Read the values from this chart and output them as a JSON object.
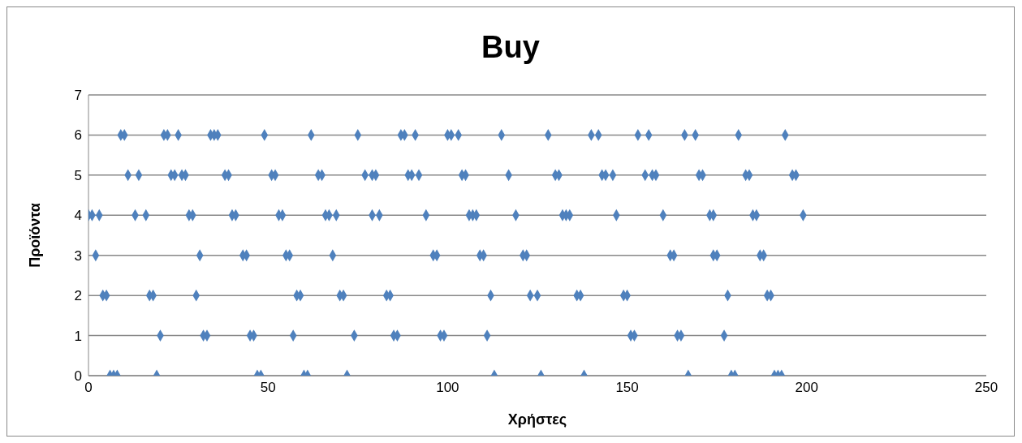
{
  "chart_data": {
    "type": "scatter",
    "title": "Buy",
    "xlabel": "Χρήστες",
    "ylabel": "Προϊόντα",
    "xlim": [
      0,
      250
    ],
    "xticks": [
      0,
      50,
      100,
      150,
      200,
      250
    ],
    "ylim": [
      0,
      7
    ],
    "yticks": [
      0,
      1,
      2,
      3,
      4,
      5,
      6,
      7
    ],
    "grid": "y",
    "marker": "diamond",
    "series": [
      {
        "color": "#4f81bd",
        "x": [
          9,
          10,
          21,
          22,
          25,
          34,
          35,
          36,
          49,
          62,
          75,
          87,
          88,
          91,
          100,
          101,
          103,
          115,
          128,
          140,
          142,
          153,
          156,
          166,
          169,
          181,
          194
        ],
        "values": [
          6,
          6,
          6,
          6,
          6,
          6,
          6,
          6,
          6,
          6,
          6,
          6,
          6,
          6,
          6,
          6,
          6,
          6,
          6,
          6,
          6,
          6,
          6,
          6,
          6,
          6,
          6
        ]
      },
      {
        "color": "#4f81bd",
        "x": [
          11,
          14,
          23,
          24,
          26,
          27,
          38,
          39,
          51,
          52,
          64,
          65,
          77,
          79,
          80,
          89,
          90,
          92,
          104,
          105,
          117,
          130,
          131,
          143,
          144,
          146,
          155,
          157,
          158,
          170,
          171,
          183,
          184,
          196,
          197
        ],
        "values": [
          5,
          5,
          5,
          5,
          5,
          5,
          5,
          5,
          5,
          5,
          5,
          5,
          5,
          5,
          5,
          5,
          5,
          5,
          5,
          5,
          5,
          5,
          5,
          5,
          5,
          5,
          5,
          5,
          5,
          5,
          5,
          5,
          5,
          5,
          5
        ]
      },
      {
        "color": "#4f81bd",
        "x": [
          0,
          1,
          3,
          13,
          16,
          28,
          29,
          40,
          41,
          53,
          54,
          66,
          67,
          69,
          79,
          81,
          94,
          106,
          107,
          108,
          119,
          132,
          133,
          134,
          147,
          160,
          173,
          174,
          185,
          186,
          199
        ],
        "values": [
          4,
          4,
          4,
          4,
          4,
          4,
          4,
          4,
          4,
          4,
          4,
          4,
          4,
          4,
          4,
          4,
          4,
          4,
          4,
          4,
          4,
          4,
          4,
          4,
          4,
          4,
          4,
          4,
          4,
          4,
          4
        ]
      },
      {
        "color": "#4f81bd",
        "x": [
          2,
          31,
          43,
          44,
          55,
          56,
          68,
          96,
          97,
          109,
          110,
          121,
          122,
          162,
          163,
          174,
          175,
          187,
          188
        ],
        "values": [
          3,
          3,
          3,
          3,
          3,
          3,
          3,
          3,
          3,
          3,
          3,
          3,
          3,
          3,
          3,
          3,
          3,
          3,
          3
        ]
      },
      {
        "color": "#4f81bd",
        "x": [
          4,
          5,
          17,
          18,
          30,
          58,
          59,
          70,
          71,
          83,
          84,
          112,
          123,
          125,
          136,
          137,
          149,
          150,
          178,
          189,
          190
        ],
        "values": [
          2,
          2,
          2,
          2,
          2,
          2,
          2,
          2,
          2,
          2,
          2,
          2,
          2,
          2,
          2,
          2,
          2,
          2,
          2,
          2,
          2
        ]
      },
      {
        "color": "#4f81bd",
        "x": [
          20,
          32,
          33,
          45,
          46,
          57,
          74,
          85,
          86,
          98,
          99,
          111,
          151,
          152,
          164,
          165,
          177
        ],
        "values": [
          1,
          1,
          1,
          1,
          1,
          1,
          1,
          1,
          1,
          1,
          1,
          1,
          1,
          1,
          1,
          1,
          1
        ]
      },
      {
        "color": "#4f81bd",
        "x": [
          6,
          7,
          8,
          19,
          47,
          48,
          60,
          61,
          72,
          113,
          126,
          138,
          167,
          179,
          180,
          191,
          192,
          193
        ],
        "values": [
          0,
          0,
          0,
          0,
          0,
          0,
          0,
          0,
          0,
          0,
          0,
          0,
          0,
          0,
          0,
          0,
          0,
          0
        ]
      }
    ]
  }
}
